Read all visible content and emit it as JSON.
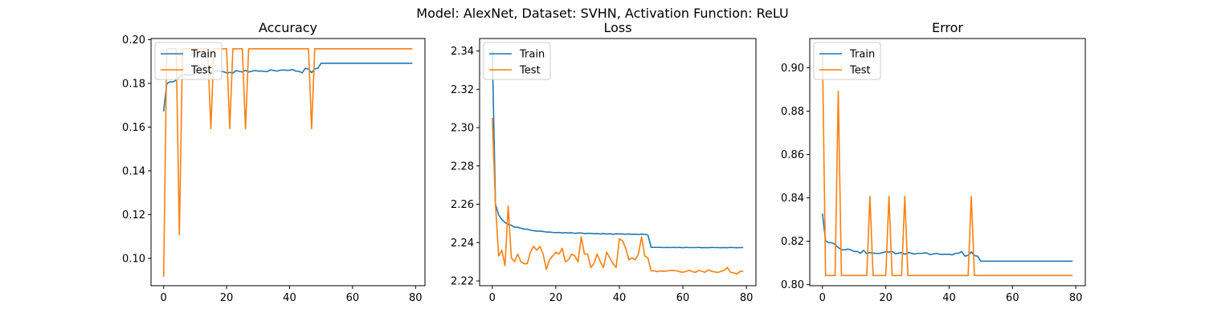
{
  "figure": {
    "suptitle": "Model: AlexNet, Dataset: SVHN, Activation Function: ReLU"
  },
  "colors": {
    "train": "#1f77b4",
    "test": "#ff7f0e"
  },
  "chart_data": [
    {
      "type": "line",
      "title": "Accuracy",
      "xlabel": "",
      "ylabel": "",
      "xlim": [
        -4,
        83
      ],
      "ylim": [
        0.0875,
        0.2005
      ],
      "xticks": [
        0,
        20,
        40,
        60,
        80
      ],
      "yticks": [
        0.1,
        0.12,
        0.14,
        0.16,
        0.18,
        0.2
      ],
      "ytick_labels": [
        "0.10",
        "0.12",
        "0.14",
        "0.16",
        "0.18",
        "0.20"
      ],
      "legend": {
        "position": "top-left",
        "entries": [
          "Train",
          "Test"
        ]
      },
      "series": [
        {
          "name": "Train",
          "values": [
            0.1672,
            0.1798,
            0.1807,
            0.1807,
            0.1815,
            0.1829,
            0.1839,
            0.184,
            0.1836,
            0.184,
            0.1847,
            0.1847,
            0.1856,
            0.1842,
            0.1857,
            0.1852,
            0.1855,
            0.1856,
            0.1856,
            0.1853,
            0.1848,
            0.185,
            0.1847,
            0.1858,
            0.1855,
            0.1852,
            0.186,
            0.1852,
            0.1855,
            0.1859,
            0.1856,
            0.1856,
            0.1855,
            0.1854,
            0.1862,
            0.1859,
            0.1856,
            0.186,
            0.1861,
            0.186,
            0.186,
            0.1863,
            0.1856,
            0.1855,
            0.1848,
            0.1869,
            0.1865,
            0.1849,
            0.1866,
            0.1869,
            0.1892,
            0.1892,
            0.1892,
            0.1892,
            0.1892,
            0.1892,
            0.1892,
            0.1892,
            0.1892,
            0.1892,
            0.1892,
            0.1892,
            0.1892,
            0.1892,
            0.1892,
            0.1892,
            0.1892,
            0.1892,
            0.1892,
            0.1892,
            0.1892,
            0.1892,
            0.1892,
            0.1892,
            0.1892,
            0.1892,
            0.1892,
            0.1892,
            0.1892,
            0.1892
          ]
        },
        {
          "name": "Test",
          "values": [
            0.0915,
            0.1958,
            0.1958,
            0.1958,
            0.1958,
            0.1108,
            0.1958,
            0.1958,
            0.1958,
            0.1958,
            0.1958,
            0.1958,
            0.1958,
            0.1958,
            0.1958,
            0.1593,
            0.1958,
            0.1958,
            0.1958,
            0.1958,
            0.1958,
            0.1593,
            0.1958,
            0.1958,
            0.1958,
            0.1958,
            0.1593,
            0.1958,
            0.1958,
            0.1958,
            0.1958,
            0.1958,
            0.1958,
            0.1958,
            0.1958,
            0.1958,
            0.1958,
            0.1958,
            0.1958,
            0.1958,
            0.1958,
            0.1958,
            0.1958,
            0.1958,
            0.1958,
            0.1958,
            0.1958,
            0.1593,
            0.1958,
            0.1958,
            0.1958,
            0.1958,
            0.1958,
            0.1958,
            0.1958,
            0.1958,
            0.1958,
            0.1958,
            0.1958,
            0.1958,
            0.1958,
            0.1958,
            0.1958,
            0.1958,
            0.1958,
            0.1958,
            0.1958,
            0.1958,
            0.1958,
            0.1958,
            0.1958,
            0.1958,
            0.1958,
            0.1958,
            0.1958,
            0.1958,
            0.1958,
            0.1958,
            0.1958,
            0.1958
          ]
        }
      ]
    },
    {
      "type": "line",
      "title": "Loss",
      "xlabel": "",
      "ylabel": "",
      "xlim": [
        -4,
        83
      ],
      "ylim": [
        2.2175,
        2.3465
      ],
      "xticks": [
        0,
        20,
        40,
        60,
        80
      ],
      "yticks": [
        2.22,
        2.24,
        2.26,
        2.28,
        2.3,
        2.32,
        2.34
      ],
      "ytick_labels": [
        "2.22",
        "2.24",
        "2.26",
        "2.28",
        "2.30",
        "2.32",
        "2.34"
      ],
      "legend": {
        "position": "top-left",
        "entries": [
          "Train",
          "Test"
        ]
      },
      "series": [
        {
          "name": "Train",
          "values": [
            2.34,
            2.26,
            2.2545,
            2.252,
            2.2505,
            2.2495,
            2.249,
            2.248,
            2.248,
            2.2475,
            2.247,
            2.247,
            2.2465,
            2.2462,
            2.246,
            2.246,
            2.2458,
            2.2455,
            2.2455,
            2.2453,
            2.2452,
            2.2453,
            2.245,
            2.2452,
            2.245,
            2.2451,
            2.2448,
            2.245,
            2.245,
            2.2447,
            2.2448,
            2.2448,
            2.2446,
            2.2447,
            2.2445,
            2.2447,
            2.2445,
            2.2446,
            2.2444,
            2.2446,
            2.2445,
            2.2445,
            2.2443,
            2.2445,
            2.2443,
            2.2444,
            2.2442,
            2.2444,
            2.2443,
            2.244,
            2.2375,
            2.2375,
            2.2375,
            2.2375,
            2.2374,
            2.2375,
            2.2374,
            2.2375,
            2.2374,
            2.2375,
            2.2373,
            2.2375,
            2.2374,
            2.2374,
            2.2374,
            2.2375,
            2.2373,
            2.2374,
            2.2373,
            2.2375,
            2.2374,
            2.2374,
            2.2373,
            2.2374,
            2.2373,
            2.2375,
            2.2374,
            2.2373,
            2.2374,
            2.2374
          ]
        },
        {
          "name": "Test",
          "values": [
            2.305,
            2.26,
            2.233,
            2.236,
            2.228,
            2.259,
            2.232,
            2.23,
            2.234,
            2.23,
            2.229,
            2.229,
            2.235,
            2.238,
            2.236,
            2.238,
            2.234,
            2.226,
            2.231,
            2.233,
            2.235,
            2.234,
            2.237,
            2.23,
            2.231,
            2.234,
            2.233,
            2.23,
            2.243,
            2.234,
            2.234,
            2.227,
            2.229,
            2.234,
            2.23,
            2.227,
            2.235,
            2.232,
            2.229,
            2.227,
            2.242,
            2.241,
            2.237,
            2.231,
            2.232,
            2.231,
            2.234,
            2.243,
            2.233,
            2.232,
            2.2252,
            2.2253,
            2.2248,
            2.2252,
            2.225,
            2.2252,
            2.2255,
            2.2254,
            2.2253,
            2.2248,
            2.2245,
            2.225,
            2.2255,
            2.2248,
            2.2245,
            2.2255,
            2.225,
            2.2245,
            2.2258,
            2.225,
            2.2247,
            2.2244,
            2.225,
            2.2255,
            2.227,
            2.2245,
            2.2242,
            2.2237,
            2.2249,
            2.225
          ]
        }
      ]
    },
    {
      "type": "line",
      "title": "Error",
      "xlabel": "",
      "ylabel": "",
      "xlim": [
        -4,
        83
      ],
      "ylim": [
        0.7995,
        0.9135
      ],
      "xticks": [
        0,
        20,
        40,
        60,
        80
      ],
      "yticks": [
        0.8,
        0.82,
        0.84,
        0.86,
        0.88,
        0.9
      ],
      "ytick_labels": [
        "0.80",
        "0.82",
        "0.84",
        "0.86",
        "0.88",
        "0.90"
      ],
      "legend": {
        "position": "top-left",
        "entries": [
          "Train",
          "Test"
        ]
      },
      "series": [
        {
          "name": "Train",
          "values": [
            0.8328,
            0.8202,
            0.8193,
            0.8193,
            0.8185,
            0.8171,
            0.8161,
            0.816,
            0.8164,
            0.816,
            0.8153,
            0.8153,
            0.8144,
            0.8158,
            0.8143,
            0.8148,
            0.8145,
            0.8144,
            0.8144,
            0.8147,
            0.8152,
            0.815,
            0.8153,
            0.8142,
            0.8145,
            0.8148,
            0.814,
            0.8148,
            0.8145,
            0.8141,
            0.8144,
            0.8144,
            0.8145,
            0.8146,
            0.8138,
            0.8141,
            0.8144,
            0.814,
            0.8139,
            0.814,
            0.814,
            0.8137,
            0.8144,
            0.8145,
            0.8152,
            0.8131,
            0.8135,
            0.8151,
            0.8134,
            0.8131,
            0.8108,
            0.8108,
            0.8108,
            0.8108,
            0.8108,
            0.8108,
            0.8108,
            0.8108,
            0.8108,
            0.8108,
            0.8108,
            0.8108,
            0.8108,
            0.8108,
            0.8108,
            0.8108,
            0.8108,
            0.8108,
            0.8108,
            0.8108,
            0.8108,
            0.8108,
            0.8108,
            0.8108,
            0.8108,
            0.8108,
            0.8108,
            0.8108,
            0.8108,
            0.8108
          ]
        },
        {
          "name": "Test",
          "values": [
            0.9085,
            0.8042,
            0.8042,
            0.8042,
            0.8042,
            0.8892,
            0.8042,
            0.8042,
            0.8042,
            0.8042,
            0.8042,
            0.8042,
            0.8042,
            0.8042,
            0.8042,
            0.8407,
            0.8042,
            0.8042,
            0.8042,
            0.8042,
            0.8042,
            0.8407,
            0.8042,
            0.8042,
            0.8042,
            0.8042,
            0.8407,
            0.8042,
            0.8042,
            0.8042,
            0.8042,
            0.8042,
            0.8042,
            0.8042,
            0.8042,
            0.8042,
            0.8042,
            0.8042,
            0.8042,
            0.8042,
            0.8042,
            0.8042,
            0.8042,
            0.8042,
            0.8042,
            0.8042,
            0.8042,
            0.8407,
            0.8042,
            0.8042,
            0.8042,
            0.8042,
            0.8042,
            0.8042,
            0.8042,
            0.8042,
            0.8042,
            0.8042,
            0.8042,
            0.8042,
            0.8042,
            0.8042,
            0.8042,
            0.8042,
            0.8042,
            0.8042,
            0.8042,
            0.8042,
            0.8042,
            0.8042,
            0.8042,
            0.8042,
            0.8042,
            0.8042,
            0.8042,
            0.8042,
            0.8042,
            0.8042,
            0.8042,
            0.8042
          ]
        }
      ]
    }
  ]
}
